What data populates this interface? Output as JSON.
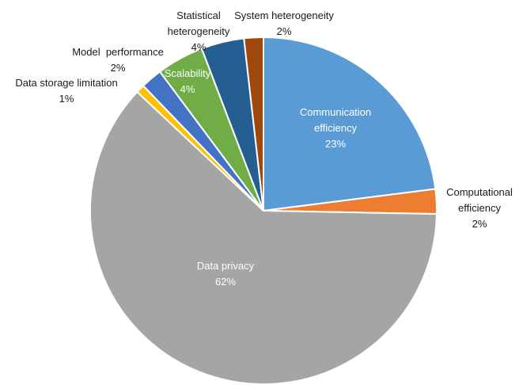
{
  "chart_data": {
    "type": "pie",
    "title": "",
    "slices": [
      {
        "name": "Communication efficiency",
        "label_lines": [
          "Communication",
          "efficiency"
        ],
        "percent_label": "23%",
        "value": 23.0,
        "color": "#5b9bd5",
        "label_style": "inside"
      },
      {
        "name": "Computational efficiency",
        "label_lines": [
          "Computational",
          "efficiency"
        ],
        "percent_label": "2%",
        "value": 2.3,
        "color": "#ed7d31",
        "label_style": "outside"
      },
      {
        "name": "Data privacy",
        "label_lines": [
          "Data privacy"
        ],
        "percent_label": "62%",
        "value": 61.7,
        "color": "#a5a5a5",
        "label_style": "inside"
      },
      {
        "name": "Data storage limitation",
        "label_lines": [
          "Data storage limitation"
        ],
        "percent_label": "1%",
        "value": 0.8,
        "color": "#ffc000",
        "label_style": "outside"
      },
      {
        "name": "Model performance",
        "label_lines": [
          "Model  performance"
        ],
        "percent_label": "2%",
        "value": 2.0,
        "color": "#4472c4",
        "label_style": "outside"
      },
      {
        "name": "Scalability",
        "label_lines": [
          "Scalability"
        ],
        "percent_label": "4%",
        "value": 4.4,
        "color": "#70ad47",
        "label_style": "inside"
      },
      {
        "name": "Statistical heterogeneity",
        "label_lines": [
          "Statistical",
          "heterogeneity"
        ],
        "percent_label": "4%",
        "value": 4.0,
        "color": "#255e91",
        "label_style": "outside"
      },
      {
        "name": "System heterogeneity",
        "label_lines": [
          "System heterogeneity"
        ],
        "percent_label": "2%",
        "value": 1.8,
        "color": "#9e480e",
        "label_style": "outside"
      }
    ]
  }
}
